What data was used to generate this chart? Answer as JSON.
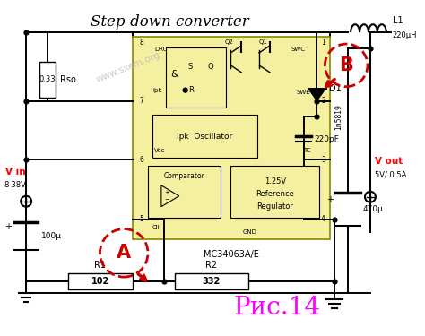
{
  "title": "Step-down converter",
  "watermark": "www.sxem.org",
  "ic_label": "MC34063A/E",
  "caption": "Рис.14",
  "bg_color": "#ffffff",
  "ic_fill": "#f5f0a0",
  "ic_border": "#888800",
  "components": {
    "Rso": {
      "label": "Rso",
      "value": "0.33"
    },
    "R1": {
      "label": "R1",
      "value": "102"
    },
    "R2": {
      "label": "R2",
      "value": "332"
    },
    "D1": {
      "label": "D1",
      "sublabel": "1n5819"
    },
    "C1": {
      "label": "220pF"
    },
    "C2": {
      "label": "470μ"
    },
    "C3": {
      "label": "100μ"
    },
    "L1": {
      "label": "L1",
      "value": "220μH"
    },
    "Vin": {
      "label": "V in",
      "sublabel": "8-38V"
    },
    "Vout": {
      "label": "V out",
      "sublabel": "5V/ 0.5A"
    }
  },
  "annotations": {
    "A": {
      "color": "#cc0000"
    },
    "B": {
      "color": "#cc0000"
    }
  }
}
